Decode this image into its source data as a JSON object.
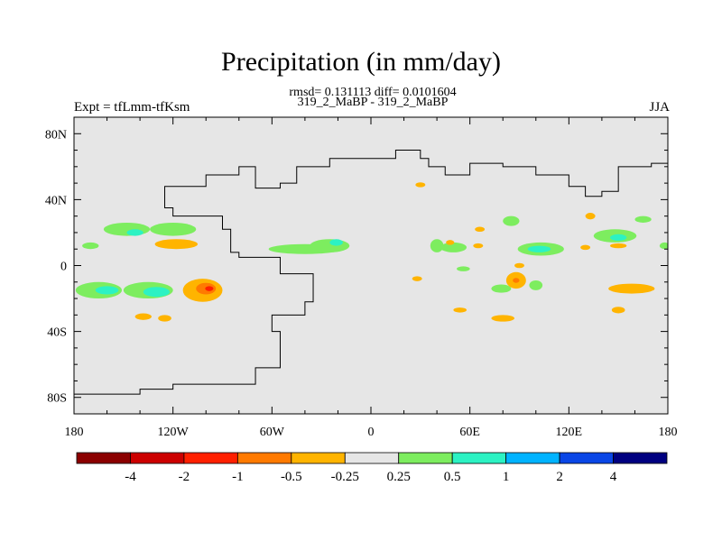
{
  "chart_data": {
    "type": "heatmap",
    "title": "Precipitation (in mm/day)",
    "stats_line": "rmsd= 0.131113 diff= 0.0101604",
    "case_line": "319_2_MaBP - 319_2_MaBP",
    "left_label": "Expt = tfLmm-tfKsm",
    "right_label": "JJA",
    "x_ticks": [
      "180",
      "120W",
      "60W",
      "0",
      "60E",
      "120E",
      "180"
    ],
    "y_ticks": [
      "80N",
      "40N",
      "0",
      "40S",
      "80S"
    ],
    "x_range": [
      -180,
      180
    ],
    "y_range": [
      -90,
      90
    ],
    "colorbar_labels": [
      "-4",
      "-2",
      "-1",
      "-0.5",
      "-0.25",
      "0.25",
      "0.5",
      "1",
      "2",
      "4"
    ],
    "colorbar_colors": [
      "#8b0000",
      "#cc0000",
      "#ff2000",
      "#ff7a00",
      "#ffb400",
      "#e6e6e6",
      "#7ded5f",
      "#2cf2c3",
      "#00b3ff",
      "#0a46e6",
      "#000080"
    ],
    "background_color": "#e6e6e6",
    "anomalies": [
      {
        "lon": -170,
        "lat": 12,
        "rx": 5,
        "ry": 2,
        "level": "0.25"
      },
      {
        "lon": -148,
        "lat": 22,
        "rx": 14,
        "ry": 4,
        "level": "0.25"
      },
      {
        "lon": -143,
        "lat": 20,
        "rx": 5,
        "ry": 2,
        "level": "0.5"
      },
      {
        "lon": -120,
        "lat": 22,
        "rx": 14,
        "ry": 4,
        "level": "0.25"
      },
      {
        "lon": -118,
        "lat": 13,
        "rx": 13,
        "ry": 3,
        "level": "-0.25"
      },
      {
        "lon": -165,
        "lat": -15,
        "rx": 14,
        "ry": 5,
        "level": "0.25"
      },
      {
        "lon": -160,
        "lat": -15,
        "rx": 7,
        "ry": 2.5,
        "level": "0.5"
      },
      {
        "lon": -135,
        "lat": -15,
        "rx": 15,
        "ry": 5,
        "level": "0.25"
      },
      {
        "lon": -130,
        "lat": -16,
        "rx": 8,
        "ry": 3,
        "level": "0.5"
      },
      {
        "lon": -102,
        "lat": -15,
        "rx": 12,
        "ry": 7,
        "level": "-0.25"
      },
      {
        "lon": -100,
        "lat": -14,
        "rx": 6,
        "ry": 3.5,
        "level": "-0.5"
      },
      {
        "lon": -98,
        "lat": -14,
        "rx": 2.5,
        "ry": 1.5,
        "level": "-1"
      },
      {
        "lon": -138,
        "lat": -31,
        "rx": 5,
        "ry": 2,
        "level": "-0.25"
      },
      {
        "lon": -125,
        "lat": -32,
        "rx": 4,
        "ry": 2,
        "level": "-0.25"
      },
      {
        "lon": -40,
        "lat": 10,
        "rx": 22,
        "ry": 3,
        "level": "0.25"
      },
      {
        "lon": -25,
        "lat": 12,
        "rx": 12,
        "ry": 4,
        "level": "0.25"
      },
      {
        "lon": -21,
        "lat": 14,
        "rx": 4,
        "ry": 2,
        "level": "0.5"
      },
      {
        "lon": 30,
        "lat": 49,
        "rx": 3,
        "ry": 1.5,
        "level": "-0.25"
      },
      {
        "lon": 40,
        "lat": 12,
        "rx": 4,
        "ry": 4,
        "level": "0.25"
      },
      {
        "lon": 50,
        "lat": 11,
        "rx": 8,
        "ry": 3,
        "level": "0.25"
      },
      {
        "lon": 48,
        "lat": 14,
        "rx": 2.5,
        "ry": 1.5,
        "level": "-0.25"
      },
      {
        "lon": 65,
        "lat": 12,
        "rx": 3,
        "ry": 1.5,
        "level": "-0.25"
      },
      {
        "lon": 66,
        "lat": 22,
        "rx": 3,
        "ry": 1.5,
        "level": "-0.25"
      },
      {
        "lon": 56,
        "lat": -2,
        "rx": 4,
        "ry": 1.5,
        "level": "0.25"
      },
      {
        "lon": 85,
        "lat": 27,
        "rx": 5,
        "ry": 3,
        "level": "0.25"
      },
      {
        "lon": 103,
        "lat": 10,
        "rx": 14,
        "ry": 4,
        "level": "0.25"
      },
      {
        "lon": 102,
        "lat": 10,
        "rx": 7,
        "ry": 2,
        "level": "0.5"
      },
      {
        "lon": 148,
        "lat": 18,
        "rx": 13,
        "ry": 4,
        "level": "0.25"
      },
      {
        "lon": 150,
        "lat": 17,
        "rx": 5,
        "ry": 2,
        "level": "0.5"
      },
      {
        "lon": 150,
        "lat": 12,
        "rx": 5,
        "ry": 1.5,
        "level": "-0.25"
      },
      {
        "lon": 165,
        "lat": 28,
        "rx": 5,
        "ry": 2,
        "level": "0.25"
      },
      {
        "lon": 178,
        "lat": 12,
        "rx": 3,
        "ry": 2,
        "level": "0.25"
      },
      {
        "lon": 133,
        "lat": 30,
        "rx": 3,
        "ry": 2,
        "level": "-0.25"
      },
      {
        "lon": 130,
        "lat": 11,
        "rx": 3,
        "ry": 1.5,
        "level": "-0.25"
      },
      {
        "lon": 90,
        "lat": 0,
        "rx": 3,
        "ry": 1.5,
        "level": "-0.25"
      },
      {
        "lon": 79,
        "lat": -14,
        "rx": 6,
        "ry": 2.5,
        "level": "0.25"
      },
      {
        "lon": 88,
        "lat": -9,
        "rx": 6,
        "ry": 5,
        "level": "-0.25"
      },
      {
        "lon": 88,
        "lat": -9,
        "rx": 2,
        "ry": 1.5,
        "level": "-0.5"
      },
      {
        "lon": 100,
        "lat": -12,
        "rx": 4,
        "ry": 3,
        "level": "0.25"
      },
      {
        "lon": 158,
        "lat": -14,
        "rx": 14,
        "ry": 3,
        "level": "-0.25"
      },
      {
        "lon": 28,
        "lat": -8,
        "rx": 3,
        "ry": 1.5,
        "level": "-0.25"
      },
      {
        "lon": 54,
        "lat": -27,
        "rx": 4,
        "ry": 1.5,
        "level": "-0.25"
      },
      {
        "lon": 80,
        "lat": -32,
        "rx": 7,
        "ry": 2,
        "level": "-0.25"
      },
      {
        "lon": 150,
        "lat": -27,
        "rx": 4,
        "ry": 2,
        "level": "-0.25"
      }
    ],
    "coastline_points": [
      [
        -180,
        -78
      ],
      [
        -140,
        -78
      ],
      [
        -140,
        -75
      ],
      [
        -120,
        -75
      ],
      [
        -120,
        -72
      ],
      [
        -95,
        -72
      ],
      [
        -70,
        -62
      ],
      [
        -55,
        -40
      ],
      [
        -60,
        -30
      ],
      [
        -40,
        -22
      ],
      [
        -35,
        -5
      ],
      [
        -55,
        5
      ],
      [
        -80,
        8
      ],
      [
        -85,
        22
      ],
      [
        -90,
        30
      ],
      [
        -120,
        35
      ],
      [
        -125,
        48
      ],
      [
        -100,
        55
      ],
      [
        -80,
        60
      ],
      [
        -70,
        47
      ],
      [
        -55,
        50
      ],
      [
        -45,
        60
      ],
      [
        -25,
        65
      ],
      [
        15,
        70
      ],
      [
        30,
        65
      ],
      [
        35,
        60
      ],
      [
        45,
        55
      ],
      [
        60,
        62
      ],
      [
        80,
        60
      ],
      [
        100,
        55
      ],
      [
        120,
        48
      ],
      [
        130,
        42
      ],
      [
        140,
        45
      ],
      [
        150,
        60
      ],
      [
        170,
        62
      ],
      [
        180,
        68
      ]
    ]
  }
}
